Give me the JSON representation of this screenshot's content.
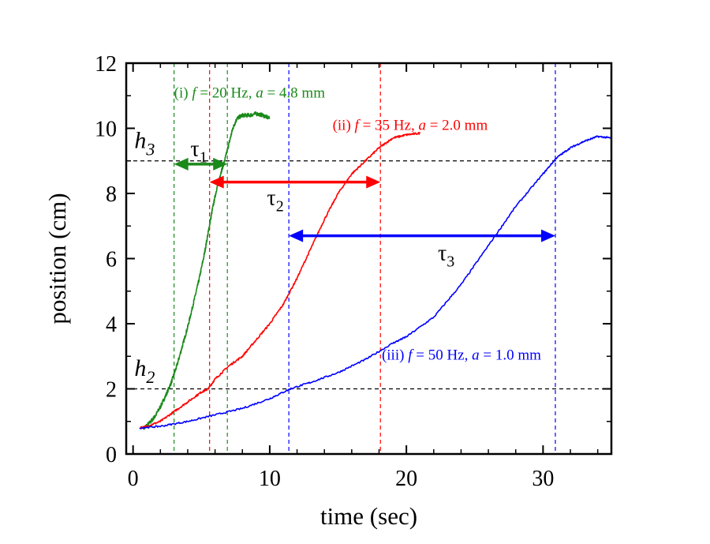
{
  "chart_data": {
    "type": "line",
    "title": "",
    "xlabel": "time (sec)",
    "ylabel": "position (cm)",
    "xlim": [
      -0.5,
      35
    ],
    "ylim": [
      0,
      12
    ],
    "x_ticks": [
      0,
      10,
      20,
      30
    ],
    "y_ticks": [
      0,
      2,
      4,
      6,
      8,
      10,
      12
    ],
    "x_tick_labels": [
      "0",
      "10",
      "20",
      "30"
    ],
    "y_tick_labels": [
      "0",
      "2",
      "4",
      "6",
      "8",
      "10",
      "12"
    ],
    "grid": false,
    "legend": "none",
    "series": [
      {
        "color": "#1a8a1a",
        "label_parts": [
          "(i) ",
          "f",
          " = 20 Hz, ",
          "a",
          " = 4.8 mm"
        ],
        "noise": 0.12,
        "x": [
          0.8,
          1.2,
          1.6,
          2.0,
          2.4,
          2.8,
          3.2,
          3.6,
          4.0,
          4.4,
          4.8,
          5.2,
          5.5,
          5.8,
          6.1,
          6.4,
          6.7,
          7.0,
          7.3,
          7.6,
          8.0,
          8.5,
          9.0,
          9.5,
          10.0
        ],
        "y": [
          0.8,
          0.95,
          1.15,
          1.45,
          1.8,
          2.2,
          2.7,
          3.3,
          3.9,
          4.6,
          5.3,
          6.1,
          6.8,
          7.5,
          8.1,
          8.6,
          9.0,
          9.5,
          10.0,
          10.3,
          10.4,
          10.4,
          10.45,
          10.4,
          10.3
        ]
      },
      {
        "color": "#ff0000",
        "label_parts": [
          "(ii) ",
          "f",
          " = 35 Hz, ",
          "a",
          " = 2.0 mm"
        ],
        "noise": 0.06,
        "x": [
          0.5,
          1.0,
          2.0,
          3.0,
          4.0,
          5.0,
          5.5,
          6.0,
          7.0,
          8.0,
          9.0,
          10.0,
          11.0,
          12.0,
          13.0,
          14.0,
          15.0,
          16.0,
          17.0,
          18.0,
          19.0,
          20.0,
          21.0
        ],
        "y": [
          0.8,
          0.85,
          1.0,
          1.3,
          1.6,
          1.9,
          2.0,
          2.3,
          2.7,
          3.0,
          3.5,
          4.0,
          4.6,
          5.4,
          6.3,
          7.2,
          8.0,
          8.6,
          9.0,
          9.4,
          9.7,
          9.8,
          9.85
        ]
      },
      {
        "color": "#0000ff",
        "label_parts": [
          "(iii) ",
          "f",
          " = 50 Hz, ",
          "a",
          " = 1.0 mm"
        ],
        "noise": 0.05,
        "x": [
          0.5,
          2.0,
          4.0,
          6.0,
          8.0,
          10.0,
          11.5,
          13.0,
          15.0,
          17.0,
          19.0,
          20.0,
          22.0,
          24.0,
          26.0,
          28.0,
          30.0,
          31.0,
          32.0,
          33.0,
          34.0,
          35.0
        ],
        "y": [
          0.8,
          0.85,
          1.0,
          1.2,
          1.4,
          1.7,
          2.0,
          2.2,
          2.5,
          2.9,
          3.4,
          3.6,
          4.2,
          5.2,
          6.4,
          7.6,
          8.6,
          9.1,
          9.4,
          9.6,
          9.75,
          9.7
        ]
      }
    ],
    "reference_lines": {
      "horizontal": [
        {
          "y": 2,
          "color": "#000000",
          "label_base": "h",
          "label_sub": "2",
          "label_x": 0.1,
          "label_y": 2.4
        },
        {
          "y": 9,
          "color": "#000000",
          "label_base": "h",
          "label_sub": "3",
          "label_x": 0.1,
          "label_y": 9.4
        }
      ],
      "vertical": [
        {
          "x": 3.0,
          "color": "#1a8a1a"
        },
        {
          "x": 6.9,
          "color": "#1a8a1a"
        },
        {
          "x": 5.6,
          "color": "#ff0000"
        },
        {
          "x": 18.1,
          "color": "#ff0000"
        },
        {
          "x": 11.4,
          "color": "#0000ff"
        },
        {
          "x": 30.9,
          "color": "#0000ff"
        }
      ]
    },
    "intervals": [
      {
        "label_base": "τ",
        "label_sub": "1",
        "color": "#1a8a1a",
        "x1": 3.0,
        "x2": 6.9,
        "y": 8.9,
        "label_x": 4.2,
        "label_y": 9.15
      },
      {
        "label_base": "τ",
        "label_sub": "2",
        "color": "#ff0000",
        "x1": 5.6,
        "x2": 18.1,
        "y": 8.35,
        "label_x": 9.8,
        "label_y": 7.65
      },
      {
        "label_base": "τ",
        "label_sub": "3",
        "color": "#0000ff",
        "x1": 11.4,
        "x2": 30.9,
        "y": 6.7,
        "label_x": 22.3,
        "label_y": 5.95
      }
    ],
    "annotations": [
      {
        "series": 0,
        "x": 3.0,
        "y": 10.95
      },
      {
        "series": 1,
        "x": 14.6,
        "y": 9.95
      },
      {
        "series": 2,
        "x": 18.2,
        "y": 2.9
      }
    ]
  }
}
